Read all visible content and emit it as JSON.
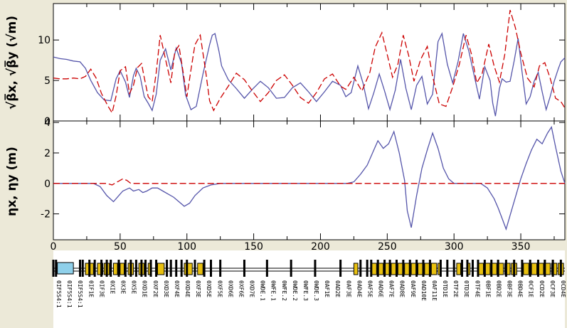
{
  "chart_data": [
    {
      "type": "line",
      "panel": "beta",
      "ylabel": "√β̅x, √β̅y (√m)",
      "xlim": [
        0,
        383
      ],
      "ylim": [
        0,
        14.5
      ],
      "yticks": [
        0,
        5,
        10
      ],
      "grid": false,
      "series": [
        {
          "name": "x",
          "color": "#5555aa",
          "style": "solid",
          "x": [
            0,
            5,
            10,
            15,
            20,
            24,
            28,
            33,
            38,
            43,
            47,
            50,
            54,
            57,
            60,
            62,
            65,
            68,
            71,
            74,
            77,
            80,
            84,
            88,
            92,
            96,
            99,
            103,
            107,
            112,
            117,
            119,
            121,
            124,
            126,
            131,
            137,
            143,
            149,
            155,
            161,
            167,
            173,
            179,
            185,
            191,
            197,
            203,
            209,
            215,
            219,
            223,
            228,
            232,
            236,
            240,
            244,
            248,
            252,
            256,
            260,
            264,
            268,
            272,
            276,
            280,
            284,
            288,
            291,
            295,
            299,
            303,
            307,
            311,
            315,
            319,
            323,
            327,
            329,
            331,
            334,
            336,
            339,
            342,
            345,
            348,
            351,
            354,
            357,
            360,
            363,
            366,
            369,
            372,
            375,
            378,
            380,
            383
          ],
          "y": [
            7.9,
            7.7,
            7.6,
            7.4,
            7.3,
            6.5,
            5.0,
            3.5,
            2.6,
            2.5,
            5.2,
            6.2,
            4.8,
            2.9,
            5.6,
            6.5,
            5.5,
            3.0,
            2.2,
            1.3,
            3.3,
            7.5,
            8.9,
            6.3,
            9.0,
            7.1,
            3.2,
            1.4,
            1.8,
            5.8,
            9.4,
            10.6,
            10.8,
            8.6,
            6.8,
            5.1,
            4.0,
            2.8,
            3.9,
            4.9,
            4.1,
            2.8,
            2.9,
            4.1,
            4.7,
            3.6,
            2.4,
            3.6,
            4.9,
            4.4,
            3.0,
            3.5,
            6.8,
            4.6,
            1.5,
            3.5,
            5.8,
            3.7,
            1.4,
            3.8,
            7.6,
            4.0,
            1.4,
            4.4,
            5.5,
            2.1,
            3.3,
            9.8,
            10.8,
            7.0,
            4.7,
            7.3,
            10.8,
            8.7,
            5.7,
            2.7,
            6.7,
            5.0,
            2.2,
            0.6,
            4.0,
            5.2,
            4.8,
            4.9,
            7.4,
            10.2,
            6.0,
            2.1,
            3.0,
            4.9,
            6.0,
            3.6,
            1.4,
            3.0,
            4.9,
            6.4,
            7.3,
            7.8
          ]
        },
        {
          "name": "y",
          "color": "#cc0000",
          "style": "dashed",
          "x": [
            0,
            5,
            10,
            15,
            20,
            24,
            28,
            32,
            36,
            41,
            44,
            47,
            50,
            54,
            57,
            60,
            63,
            66,
            68,
            71,
            74,
            77,
            80,
            84,
            88,
            91,
            94,
            97,
            100,
            103,
            106,
            110,
            114,
            117,
            120,
            125,
            131,
            137,
            143,
            149,
            155,
            161,
            167,
            173,
            179,
            185,
            191,
            197,
            203,
            209,
            215,
            219,
            225,
            231,
            237,
            241,
            246,
            250,
            254,
            258,
            262,
            266,
            270,
            275,
            280,
            284,
            289,
            294,
            299,
            304,
            309,
            313,
            317,
            321,
            326,
            330,
            334,
            338,
            342,
            346,
            350,
            355,
            360,
            364,
            368,
            372,
            376,
            380,
            383
          ],
          "y": [
            5.3,
            5.2,
            5.2,
            5.3,
            5.2,
            5.5,
            6.4,
            5.3,
            3.4,
            1.8,
            1.0,
            3.1,
            6.2,
            6.7,
            3.4,
            4.4,
            6.6,
            7.1,
            5.4,
            3.0,
            2.4,
            6.0,
            10.6,
            7.6,
            4.7,
            8.6,
            9.3,
            6.2,
            3.0,
            6.3,
            9.4,
            10.6,
            6.2,
            2.5,
            1.3,
            2.8,
            4.3,
            5.9,
            5.1,
            3.7,
            2.4,
            3.5,
            5.0,
            5.7,
            4.4,
            2.9,
            2.2,
            3.5,
            5.2,
            5.8,
            4.3,
            3.9,
            5.4,
            3.7,
            6.0,
            9.1,
            10.9,
            8.2,
            5.4,
            7.0,
            10.6,
            8.1,
            4.9,
            7.6,
            9.2,
            5.5,
            2.1,
            1.8,
            4.2,
            7.0,
            10.6,
            8.3,
            4.7,
            5.8,
            9.5,
            6.8,
            4.8,
            8.2,
            13.7,
            11.5,
            8.4,
            5.3,
            4.2,
            6.8,
            7.2,
            5.3,
            2.8,
            2.4,
            1.6
          ]
        }
      ]
    },
    {
      "type": "line",
      "panel": "eta",
      "ylabel": "ηx, ηy (m)",
      "xlabel": "",
      "xlim": [
        0,
        383
      ],
      "ylim": [
        -3.7,
        4.1
      ],
      "yticks": [
        -2,
        0,
        2,
        4
      ],
      "xticks": [
        0,
        50,
        100,
        150,
        200,
        250,
        300,
        350
      ],
      "grid": false,
      "series": [
        {
          "name": "x",
          "color": "#5555aa",
          "style": "solid",
          "x": [
            0,
            20,
            30,
            35,
            40,
            45,
            48,
            52,
            57,
            60,
            64,
            67,
            70,
            74,
            78,
            82,
            86,
            90,
            94,
            98,
            102,
            106,
            112,
            118,
            125,
            135,
            150,
            200,
            220,
            225,
            230,
            235,
            240,
            243,
            247,
            251,
            255,
            259,
            263,
            265,
            268,
            272,
            276,
            280,
            284,
            288,
            292,
            296,
            300,
            310,
            320,
            325,
            330,
            333,
            336,
            339,
            342,
            346,
            350,
            354,
            358,
            362,
            366,
            370,
            373,
            376,
            380,
            383
          ],
          "y": [
            0,
            0,
            0,
            -0.2,
            -0.8,
            -1.2,
            -0.9,
            -0.5,
            -0.3,
            -0.5,
            -0.4,
            -0.6,
            -0.5,
            -0.3,
            -0.3,
            -0.5,
            -0.7,
            -0.9,
            -1.2,
            -1.5,
            -1.3,
            -0.8,
            -0.3,
            -0.1,
            0,
            0,
            0,
            0,
            0,
            0.1,
            0.6,
            1.2,
            2.2,
            2.8,
            2.3,
            2.6,
            3.4,
            2.0,
            0.2,
            -1.8,
            -2.9,
            -0.8,
            1.0,
            2.2,
            3.3,
            2.3,
            1.0,
            0.3,
            0,
            0,
            0,
            -0.3,
            -1.0,
            -1.6,
            -2.3,
            -3.0,
            -2.1,
            -0.9,
            0.3,
            1.3,
            2.2,
            2.9,
            2.6,
            3.3,
            3.7,
            2.4,
            0.8,
            0
          ]
        },
        {
          "name": "y",
          "color": "#cc0000",
          "style": "dashed",
          "x": [
            0,
            40,
            44,
            48,
            52,
            55,
            58,
            62,
            383
          ],
          "y": [
            0,
            0,
            -0.1,
            0.1,
            0.3,
            0.2,
            0,
            0,
            0
          ]
        }
      ]
    }
  ],
  "lattice": {
    "element_labels": [
      "0IF5S4:1",
      "0IF5S4:1",
      "0IF5S4:1",
      "0IF1E",
      "0IF3E",
      "0XIE",
      "0X3E",
      "0X5E",
      "0XD1E",
      "0XF2E",
      "0XD3E",
      "0XF4E",
      "0XD4E",
      "0XF3E",
      "0XD5E",
      "0XF5E",
      "0XD6E",
      "0XF6E",
      "0XD7E",
      "0WDE.1",
      "0WFE.1",
      "0WFE.2",
      "0WDE.2",
      "0WFE.3",
      "0WDE.3",
      "0AF1E",
      "0AD2E",
      "0AF3E",
      "0AD4E",
      "0AF5E",
      "0AD6E",
      "0AF7E",
      "0AD8E",
      "0AF9E",
      "0AD10E",
      "0AF11E",
      "0TD1E",
      "0TF2E",
      "0TD3E",
      "0TF4E",
      "0BF1E",
      "0BD2E",
      "0BF3E",
      "0BD4E",
      "0CF1E",
      "0CD2E",
      "0CF3E",
      "0CD4E"
    ],
    "dipole_color": "#e8c010",
    "quad_color": "#000000",
    "special_color": "#8fd0ea"
  }
}
